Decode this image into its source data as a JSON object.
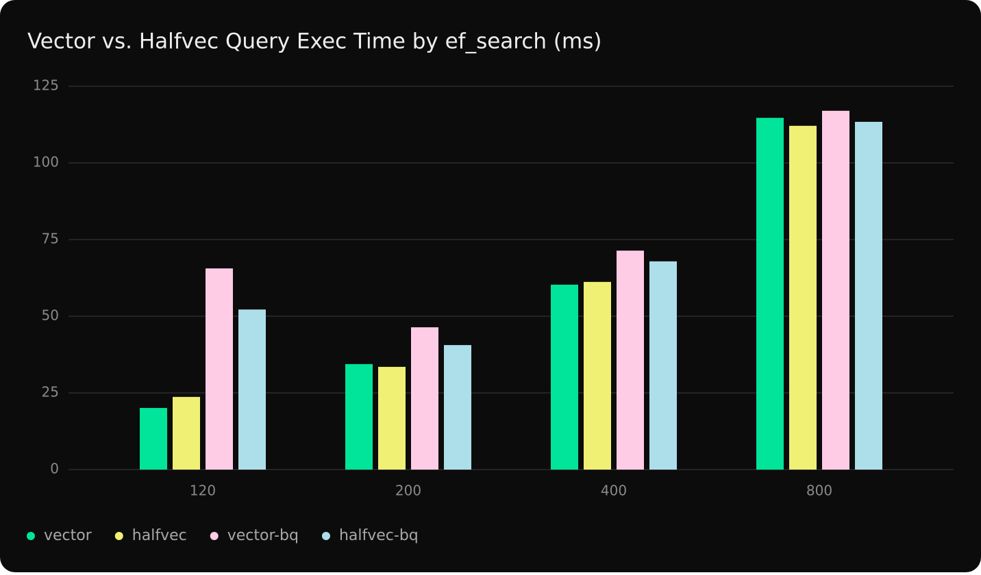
{
  "chart_data": {
    "type": "bar",
    "title": "Vector vs. Halfvec Query Exec Time by ef_search (ms)",
    "categories": [
      "120",
      "200",
      "400",
      "800"
    ],
    "series": [
      {
        "name": "vector",
        "color": "#00e599",
        "values": [
          20.1,
          34.4,
          60.3,
          114.7
        ]
      },
      {
        "name": "halfvec",
        "color": "#f0f075",
        "values": [
          23.7,
          33.5,
          61.2,
          112.1
        ]
      },
      {
        "name": "vector-bq",
        "color": "#ffcce6",
        "values": [
          65.6,
          46.4,
          71.4,
          117.0
        ]
      },
      {
        "name": "halfvec-bq",
        "color": "#addfea",
        "values": [
          52.2,
          40.6,
          67.9,
          113.4
        ]
      }
    ],
    "ylim": [
      0,
      125
    ],
    "yticks": [
      0,
      25,
      50,
      75,
      100,
      125
    ],
    "grid": true,
    "legend": "bottom-left"
  }
}
